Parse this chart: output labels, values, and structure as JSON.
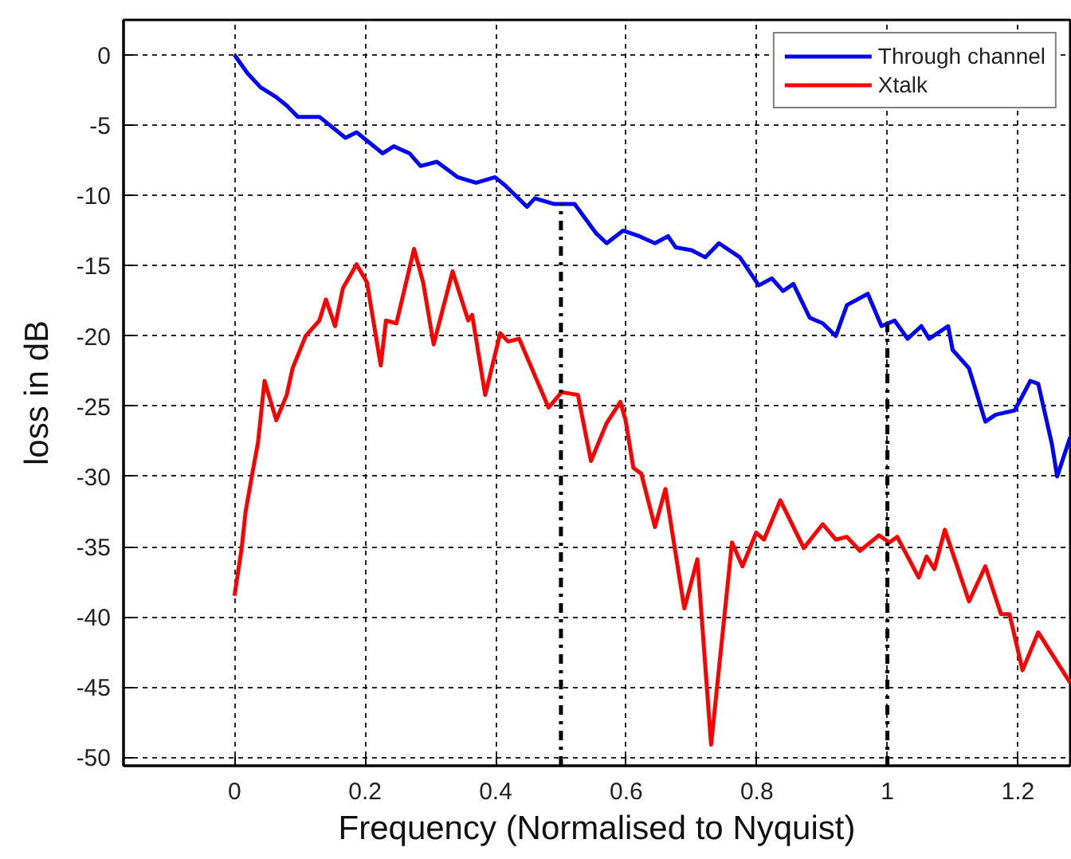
{
  "chart_data": {
    "type": "line",
    "xlabel": "Frequency (Normalised to Nyquist)",
    "ylabel": "loss in dB",
    "xlim": [
      -0.17,
      1.28
    ],
    "ylim": [
      -50.6,
      2.5
    ],
    "xticks": [
      0,
      0.2,
      0.4,
      0.6,
      0.8,
      1,
      1.2
    ],
    "yticks": [
      0,
      -5,
      -10,
      -15,
      -20,
      -25,
      -30,
      -35,
      -40,
      -45,
      -50
    ],
    "grid": true,
    "legend": "top right",
    "line_style": "solid",
    "series": [
      {
        "name": "Through channel",
        "color": "#0000ff",
        "x": [
          0,
          0.02,
          0.04,
          0.064,
          0.08,
          0.097,
          0.13,
          0.17,
          0.187,
          0.227,
          0.244,
          0.268,
          0.285,
          0.31,
          0.342,
          0.37,
          0.399,
          0.415,
          0.448,
          0.46,
          0.489,
          0.521,
          0.554,
          0.57,
          0.595,
          0.62,
          0.644,
          0.664,
          0.676,
          0.7,
          0.721,
          0.742,
          0.774,
          0.803,
          0.823,
          0.84,
          0.856,
          0.881,
          0.901,
          0.921,
          0.938,
          0.97,
          0.991,
          1.011,
          1.031,
          1.052,
          1.064,
          1.093,
          1.1,
          1.125,
          1.15,
          1.166,
          1.195,
          1.219,
          1.231,
          1.252,
          1.26,
          1.28
        ],
        "values": [
          0,
          -1.3,
          -2.3,
          -3.0,
          -3.6,
          -4.4,
          -4.4,
          -5.9,
          -5.5,
          -7.0,
          -6.5,
          -7.0,
          -7.9,
          -7.6,
          -8.7,
          -9.1,
          -8.7,
          -9.3,
          -10.8,
          -10.2,
          -10.6,
          -10.6,
          -12.7,
          -13.4,
          -12.5,
          -12.9,
          -13.4,
          -12.9,
          -13.7,
          -13.9,
          -14.4,
          -13.4,
          -14.4,
          -16.4,
          -15.9,
          -16.8,
          -16.3,
          -18.7,
          -19.1,
          -20.0,
          -17.8,
          -17.0,
          -19.3,
          -18.9,
          -20.2,
          -19.3,
          -20.2,
          -19.3,
          -21.0,
          -22.3,
          -26.1,
          -25.6,
          -25.3,
          -23.2,
          -23.4,
          -27.7,
          -30.0,
          -27.2
        ]
      },
      {
        "name": "Xtalk",
        "color": "#ff0000",
        "x": [
          0,
          0.011,
          0.017,
          0.028,
          0.036,
          0.046,
          0.064,
          0.08,
          0.089,
          0.109,
          0.13,
          0.14,
          0.154,
          0.166,
          0.187,
          0.203,
          0.224,
          0.232,
          0.248,
          0.275,
          0.289,
          0.305,
          0.334,
          0.358,
          0.364,
          0.384,
          0.407,
          0.419,
          0.436,
          0.481,
          0.501,
          0.526,
          0.546,
          0.57,
          0.591,
          0.599,
          0.611,
          0.623,
          0.644,
          0.66,
          0.689,
          0.709,
          0.73,
          0.762,
          0.778,
          0.799,
          0.811,
          0.836,
          0.872,
          0.901,
          0.921,
          0.938,
          0.958,
          0.987,
          1.003,
          1.015,
          1.048,
          1.06,
          1.072,
          1.088,
          1.125,
          1.15,
          1.174,
          1.187,
          1.207,
          1.231,
          1.28
        ],
        "values": [
          -38.5,
          -35.1,
          -32.5,
          -29.6,
          -27.6,
          -23.2,
          -26.0,
          -24.2,
          -22.3,
          -20.0,
          -18.9,
          -17.4,
          -19.3,
          -16.6,
          -14.9,
          -16.2,
          -22.1,
          -18.9,
          -19.1,
          -13.8,
          -16.2,
          -20.6,
          -15.4,
          -18.9,
          -18.5,
          -24.2,
          -19.8,
          -20.4,
          -20.2,
          -25.1,
          -24.0,
          -24.2,
          -28.9,
          -26.2,
          -24.7,
          -26.0,
          -29.4,
          -29.8,
          -33.6,
          -30.9,
          -39.4,
          -35.9,
          -49.1,
          -34.7,
          -36.4,
          -34.0,
          -34.5,
          -31.7,
          -35.1,
          -33.4,
          -34.5,
          -34.3,
          -35.3,
          -34.2,
          -34.7,
          -34.3,
          -37.2,
          -35.7,
          -36.6,
          -33.8,
          -38.9,
          -36.4,
          -39.8,
          -39.8,
          -43.8,
          -41.1,
          -44.7
        ]
      }
    ],
    "ref_lines": [
      {
        "axis": "x",
        "value": 0.5,
        "color": "#000000",
        "line_style": "dashdot"
      },
      {
        "axis": "x",
        "value": 1,
        "color": "#000000",
        "line_style": "dashdot"
      }
    ]
  }
}
